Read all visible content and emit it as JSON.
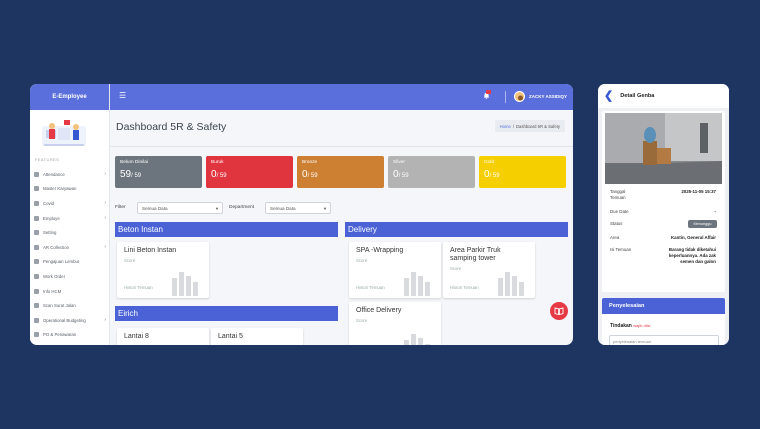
{
  "app": {
    "brand": "E-Employee"
  },
  "user": {
    "name": "ZACKY ASSIDIQY"
  },
  "sidebar": {
    "section_label": "FEATURES",
    "items": [
      {
        "label": "Attendance",
        "icon": "calendar-icon",
        "chevron": true
      },
      {
        "label": "Master Karyawan",
        "icon": "users-icon",
        "chevron": false
      },
      {
        "label": "Covid",
        "icon": "shield-icon",
        "chevron": true
      },
      {
        "label": "Employe",
        "icon": "user-icon",
        "chevron": true
      },
      {
        "label": "Setting",
        "icon": "gear-icon",
        "chevron": false
      },
      {
        "label": "AR Collection",
        "icon": "chart-icon",
        "chevron": true
      },
      {
        "label": "Pengajuan Lembur",
        "icon": "clock-icon",
        "chevron": false
      },
      {
        "label": "Work Order",
        "icon": "clipboard-icon",
        "chevron": false
      },
      {
        "label": "Info HCM",
        "icon": "info-icon",
        "chevron": false
      },
      {
        "label": "Scan Surat Jalan",
        "icon": "scan-icon",
        "chevron": false
      },
      {
        "label": "Operational Budgeting",
        "icon": "wallet-icon",
        "chevron": true
      },
      {
        "label": "PO & Penawaran",
        "icon": "document-icon",
        "chevron": false
      }
    ]
  },
  "page": {
    "title": "Dashboard 5R & Safety",
    "breadcrumb": {
      "home": "Home",
      "sep": "/",
      "current": "Dashboard 5R & Safety"
    }
  },
  "stat_cards": [
    {
      "label": "Belum Dinilai",
      "value": "59",
      "total": "/ 59",
      "color": "#6c757d"
    },
    {
      "label": "Buruk",
      "value": "0",
      "total": "/ 59",
      "color": "#e0343f"
    },
    {
      "label": "Bronze",
      "value": "0",
      "total": "/ 59",
      "color": "#cd7f32"
    },
    {
      "label": "Silver",
      "value": "0",
      "total": "/ 59",
      "color": "#b3b3b3"
    },
    {
      "label": "Gold",
      "value": "0",
      "total": "/ 59",
      "color": "#f5cf00"
    }
  ],
  "filters": {
    "filter_label": "Filter",
    "filter_value": "Semua Data",
    "department_label": "Department",
    "department_value": "Semua Data"
  },
  "sections": [
    {
      "title": "Beton Instan",
      "locations": [
        {
          "name": "Lini Beton Instan",
          "score_label": "Score",
          "history_label": "Histori Temuan"
        }
      ]
    },
    {
      "title": "Delivery",
      "locations": [
        {
          "name": "SPA -Wrapping",
          "score_label": "Score",
          "history_label": "Histori Temuan"
        },
        {
          "name": "Area Parkir Truk samping tower",
          "score_label": "Score",
          "history_label": "Histori Temuan"
        },
        {
          "name": "Office Delivery",
          "score_label": "Score",
          "history_label": ""
        }
      ]
    },
    {
      "title": "Eirich",
      "locations": [
        {
          "name": "Lantai 8",
          "score_label": "",
          "history_label": ""
        },
        {
          "name": "Lantai 5",
          "score_label": "",
          "history_label": ""
        }
      ]
    }
  ],
  "detail": {
    "title": "Detail Genba",
    "tanggal_label": "Tanggal\nTemuan",
    "tanggal_value": "2025-11-05 15:37",
    "due_label": "Due Date",
    "due_value": "-",
    "status_label": "Status",
    "status_value": "Menunggu",
    "area_label": "Area",
    "area_value": "Kantin, General Affair",
    "isi_label": "Isi Temuan",
    "isi_value": "Barang tidak diketahui keperluannya. Ada zak semen dan galon",
    "penyelesaian_title": "Penyelesaian",
    "tindakan_label": "Tindakan",
    "tindakan_required": "wajib diisi",
    "input_placeholder": "penyelesaian temuan"
  }
}
